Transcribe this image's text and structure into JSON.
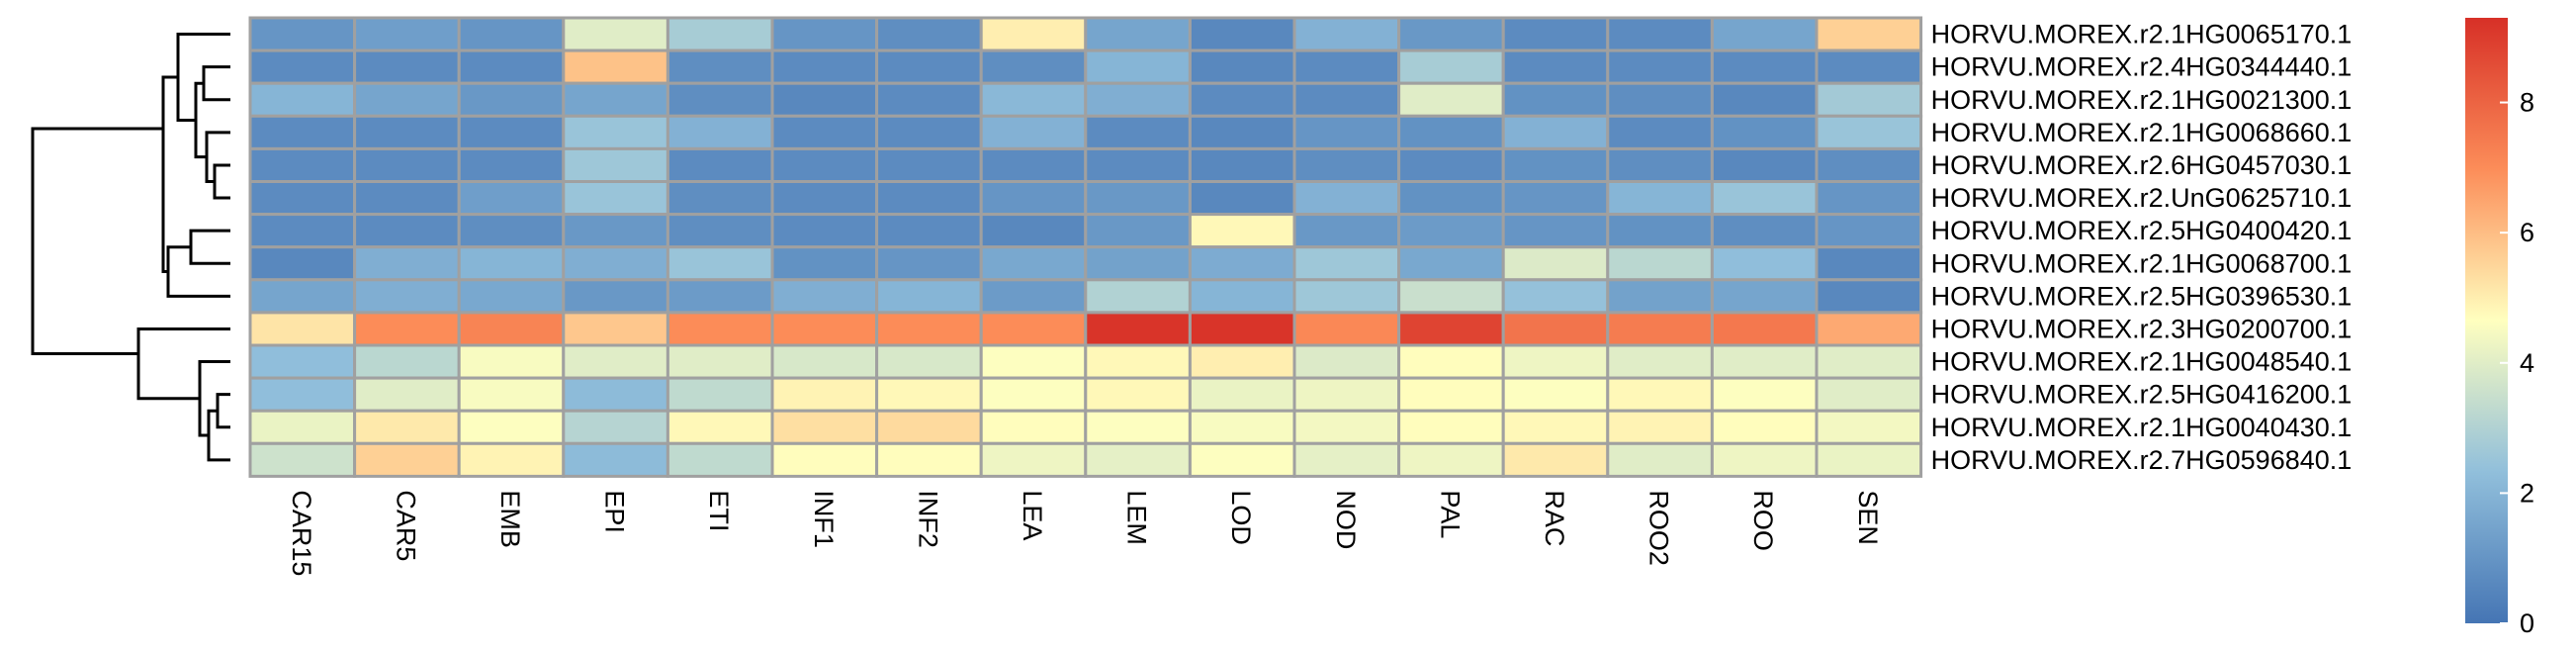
{
  "chart_data": {
    "type": "heatmap",
    "title": "",
    "xlabel": "",
    "ylabel": "",
    "columns": [
      "CAR15",
      "CAR5",
      "EMB",
      "EPI",
      "ETI",
      "INF1",
      "INF2",
      "LEA",
      "LEM",
      "LOD",
      "NOD",
      "PAL",
      "RAC",
      "ROO2",
      "ROO",
      "SEN"
    ],
    "rows": [
      "HORVU.MOREX.r2.1HG0065170.1",
      "HORVU.MOREX.r2.4HG0344440.1",
      "HORVU.MOREX.r2.1HG0021300.1",
      "HORVU.MOREX.r2.1HG0068660.1",
      "HORVU.MOREX.r2.6HG0457030.1",
      "HORVU.MOREX.r2.UnG0625710.1",
      "HORVU.MOREX.r2.5HG0400420.1",
      "HORVU.MOREX.r2.1HG0068700.1",
      "HORVU.MOREX.r2.5HG0396530.1",
      "HORVU.MOREX.r2.3HG0200700.1",
      "HORVU.MOREX.r2.1HG0048540.1",
      "HORVU.MOREX.r2.5HG0416200.1",
      "HORVU.MOREX.r2.1HG0040430.1",
      "HORVU.MOREX.r2.7HG0596840.1"
    ],
    "values": [
      [
        1.0,
        1.3,
        1.0,
        4.0,
        2.8,
        1.0,
        0.8,
        5.0,
        1.5,
        0.6,
        1.9,
        1.1,
        0.7,
        0.7,
        1.5,
        5.6
      ],
      [
        0.7,
        0.7,
        0.7,
        5.9,
        0.8,
        0.7,
        0.7,
        0.8,
        2.0,
        0.6,
        0.7,
        2.8,
        0.7,
        0.7,
        0.7,
        0.7
      ],
      [
        2.0,
        1.5,
        1.1,
        1.5,
        0.8,
        0.6,
        0.7,
        2.1,
        1.8,
        0.7,
        0.7,
        4.0,
        0.9,
        0.8,
        0.6,
        2.7
      ],
      [
        0.7,
        0.7,
        0.7,
        2.5,
        1.9,
        0.7,
        0.7,
        1.9,
        0.7,
        0.6,
        1.0,
        0.9,
        1.9,
        0.7,
        0.9,
        2.5
      ],
      [
        0.7,
        0.7,
        0.7,
        2.6,
        0.7,
        0.7,
        0.7,
        0.7,
        0.7,
        0.6,
        0.8,
        0.7,
        0.9,
        0.8,
        0.6,
        0.8
      ],
      [
        0.7,
        0.7,
        1.3,
        2.5,
        0.8,
        0.7,
        0.7,
        1.0,
        1.1,
        0.6,
        1.9,
        0.9,
        1.0,
        2.0,
        2.5,
        1.0
      ],
      [
        0.7,
        0.7,
        0.8,
        1.1,
        0.8,
        0.7,
        0.7,
        0.6,
        1.1,
        4.8,
        1.1,
        1.2,
        1.0,
        0.9,
        0.8,
        1.0
      ],
      [
        0.6,
        1.8,
        2.0,
        1.8,
        2.5,
        0.9,
        1.0,
        1.6,
        1.4,
        1.7,
        2.6,
        1.6,
        3.9,
        3.2,
        2.3,
        0.6
      ],
      [
        1.5,
        1.8,
        1.6,
        1.1,
        1.2,
        1.8,
        2.0,
        1.2,
        3.0,
        2.0,
        2.6,
        3.5,
        2.4,
        1.4,
        1.5,
        0.6
      ],
      [
        5.2,
        7.0,
        7.2,
        5.8,
        7.0,
        7.0,
        7.0,
        7.0,
        9.2,
        9.2,
        7.1,
        8.8,
        7.6,
        7.4,
        7.5,
        6.4
      ],
      [
        2.3,
        3.2,
        4.5,
        4.0,
        4.0,
        3.8,
        3.8,
        4.6,
        4.8,
        5.0,
        3.9,
        4.7,
        4.3,
        4.0,
        4.0,
        4.0
      ],
      [
        2.3,
        4.0,
        4.5,
        2.2,
        3.3,
        4.9,
        4.8,
        4.6,
        4.8,
        4.2,
        4.3,
        4.7,
        4.6,
        4.8,
        4.6,
        4.0
      ],
      [
        4.2,
        5.1,
        4.6,
        3.1,
        4.8,
        5.3,
        5.4,
        4.7,
        4.6,
        4.5,
        4.4,
        4.7,
        4.8,
        4.9,
        4.7,
        4.4
      ],
      [
        3.6,
        5.6,
        4.9,
        2.2,
        3.3,
        4.7,
        4.7,
        4.3,
        4.1,
        4.6,
        4.1,
        4.3,
        5.1,
        4.0,
        4.3,
        4.2
      ]
    ],
    "legend": {
      "position": "right",
      "range": [
        0,
        9.3
      ],
      "ticks": [
        "0",
        "2",
        "4",
        "6",
        "8"
      ]
    },
    "colors": {
      "low": "#4575b4",
      "mid_low": "#91bfdb",
      "mid": "#ffffbf",
      "mid_high": "#fc8d59",
      "high": "#d73027",
      "cell_border": "#a0a0a0"
    }
  }
}
